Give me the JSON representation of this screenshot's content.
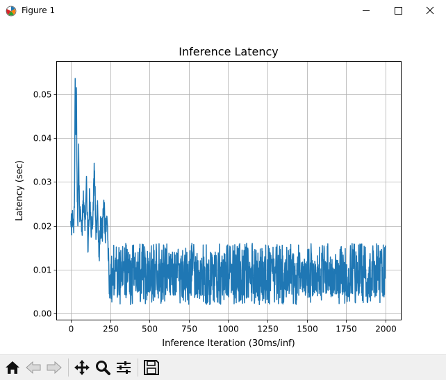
{
  "window": {
    "title": "Figure 1"
  },
  "toolbar": {
    "buttons": [
      {
        "name": "home-button",
        "icon": "home-icon"
      },
      {
        "name": "back-button",
        "icon": "left-arrow-icon"
      },
      {
        "name": "forward-button",
        "icon": "right-arrow-icon"
      },
      {
        "name": "pan-button",
        "icon": "move-icon"
      },
      {
        "name": "zoom-button",
        "icon": "magnifier-icon"
      },
      {
        "name": "configure-subplots-button",
        "icon": "sliders-icon"
      },
      {
        "name": "save-button",
        "icon": "floppy-disk-icon"
      }
    ]
  },
  "chart_data": {
    "type": "line",
    "title": "Inference Latency",
    "xlabel": "Inference Iteration (30ms/inf)",
    "ylabel": "Latency (sec)",
    "xlim": [
      -90,
      2100
    ],
    "ylim": [
      -0.0015,
      0.0575
    ],
    "xticks": [
      0,
      250,
      500,
      750,
      1000,
      1250,
      1500,
      1750,
      2000
    ],
    "yticks": [
      0.0,
      0.01,
      0.02,
      0.03,
      0.04,
      0.05
    ],
    "ytick_labels": [
      "0.00",
      "0.01",
      "0.02",
      "0.03",
      "0.04",
      "0.05"
    ],
    "grid": true,
    "line_color": "#1f77b4",
    "series": [
      {
        "name": "latency",
        "sampling": "approximate profile read from plot; high-frequency noise between min/max bands",
        "x": [
          0,
          5,
          10,
          15,
          20,
          24,
          28,
          32,
          36,
          40,
          45,
          50,
          55,
          60,
          70,
          80,
          90,
          100,
          110,
          120,
          130,
          140,
          150,
          160,
          170,
          180,
          190,
          200,
          210,
          220,
          230,
          240,
          2000
        ],
        "y": [
          0.022,
          0.019,
          0.021,
          0.023,
          0.019,
          0.03,
          0.055,
          0.04,
          0.051,
          0.03,
          0.02,
          0.037,
          0.024,
          0.022,
          0.019,
          0.025,
          0.021,
          0.03,
          0.015,
          0.027,
          0.02,
          0.022,
          0.034,
          0.018,
          0.024,
          0.013,
          0.021,
          0.018,
          0.025,
          0.019,
          0.024,
          0.01,
          0.008
        ],
        "band_after_250": {
          "min": 0.002,
          "max": 0.016,
          "typical": 0.0075
        }
      }
    ]
  }
}
